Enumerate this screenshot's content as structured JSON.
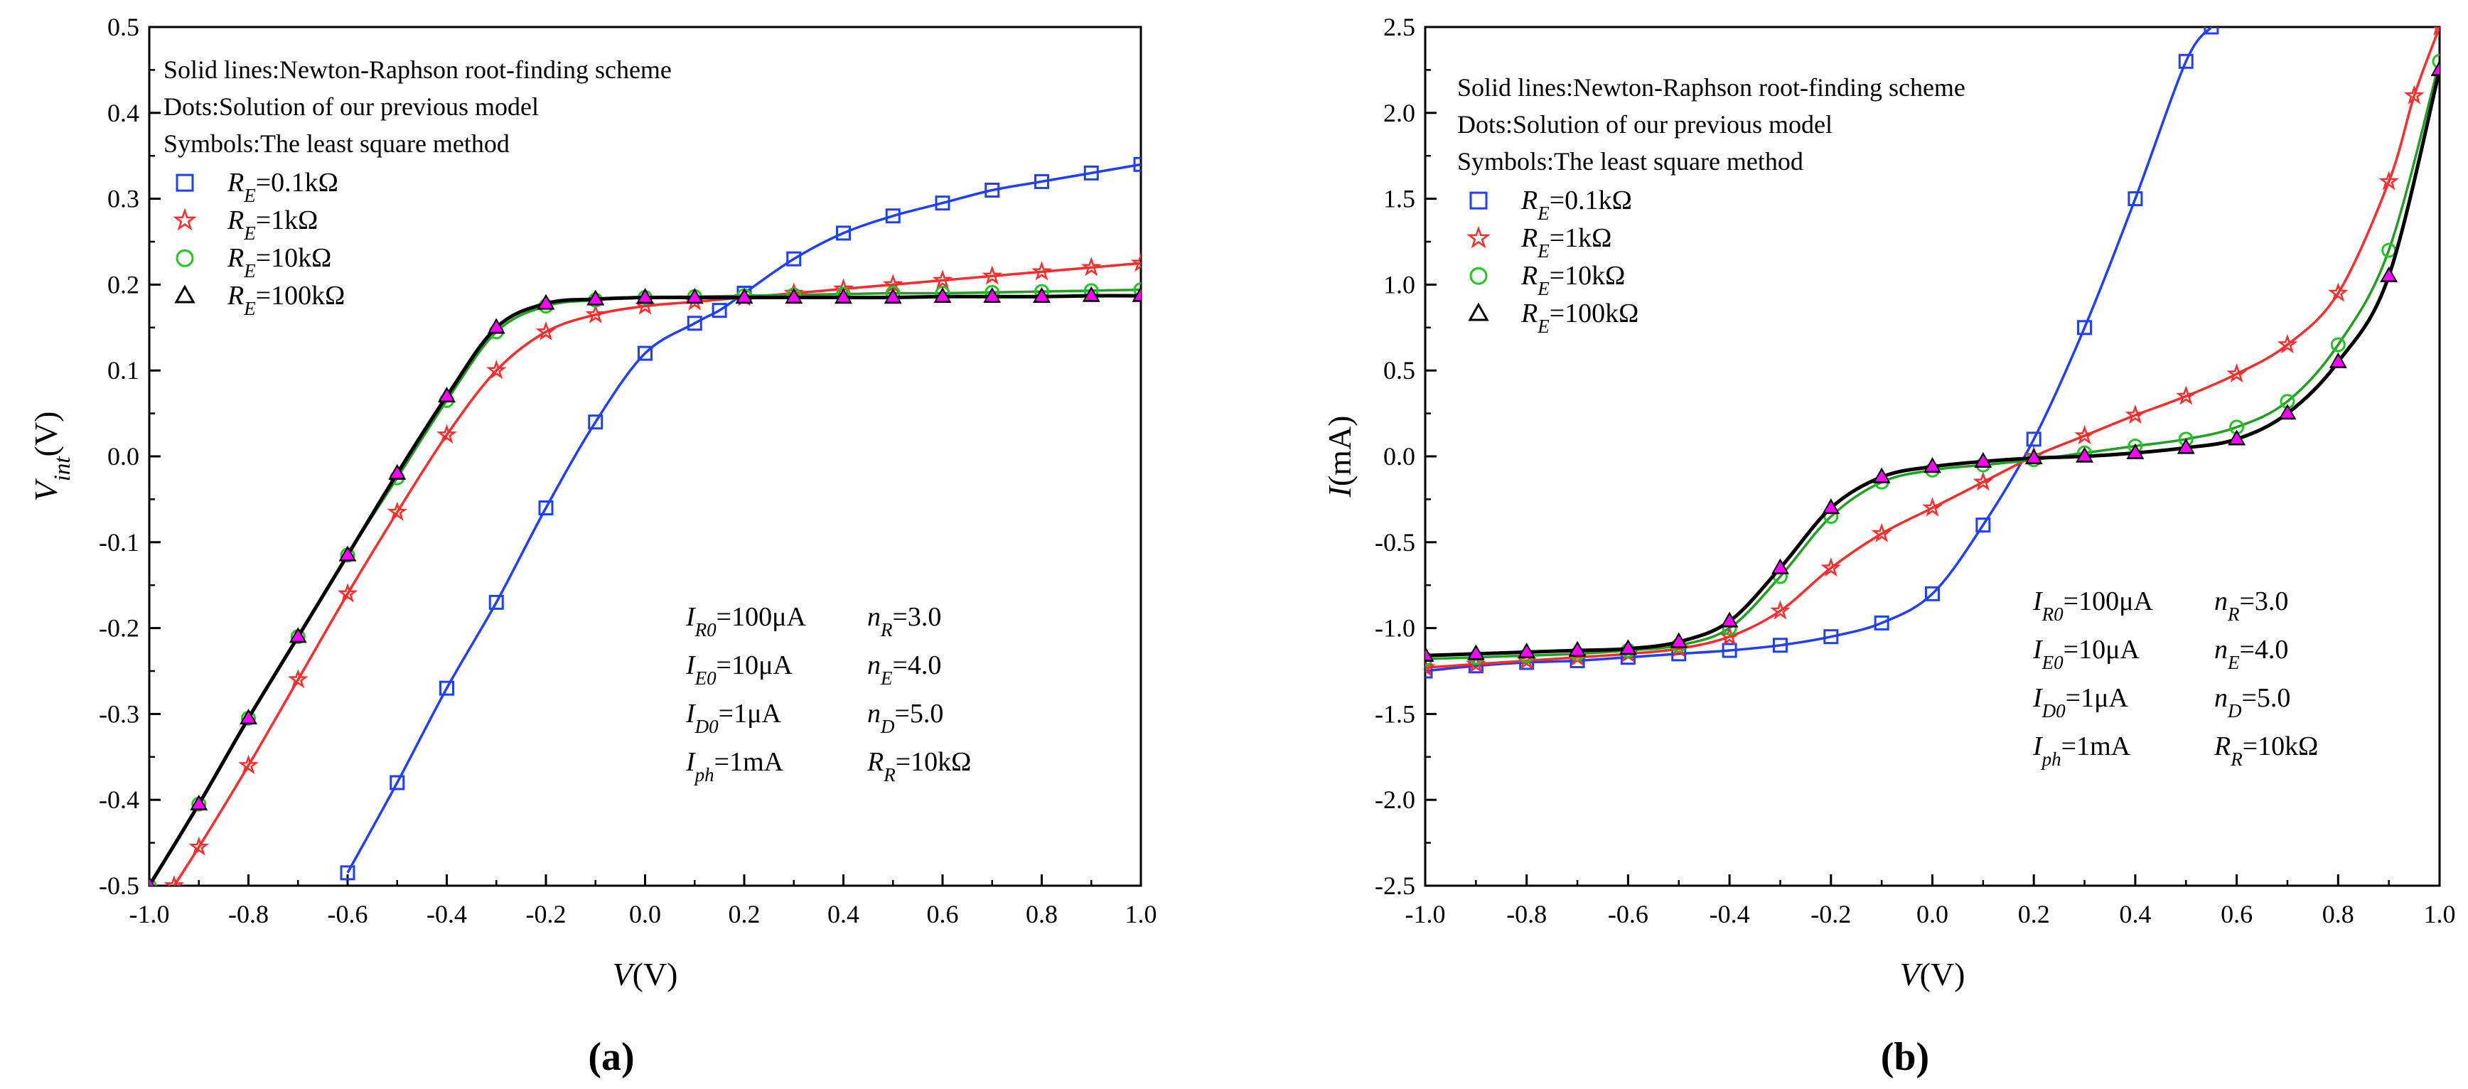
{
  "chart_data": [
    {
      "panel": "(a)",
      "type": "line",
      "xlabel": {
        "italic": "V",
        "rest": "(V)"
      },
      "ylabel": {
        "italic": "V",
        "sub": "int",
        "rest": "(V)"
      },
      "xlim": [
        -1.0,
        1.0
      ],
      "ylim": [
        -0.5,
        0.5
      ],
      "xticks": [
        "-1.0",
        "-0.8",
        "-0.6",
        "-0.4",
        "-0.2",
        "0.0",
        "0.2",
        "0.4",
        "0.6",
        "0.8",
        "1.0"
      ],
      "yticks": [
        "0.5",
        "0.4",
        "0.3",
        "0.2",
        "0.1",
        "0.0",
        "-0.1",
        "-0.2",
        "-0.3",
        "-0.4",
        "-0.5"
      ],
      "legend_lines": [
        "Solid lines:Newton-Raphson root-finding scheme",
        "Dots:Solution of our previous model",
        "Symbols:The least square method"
      ],
      "legend_entries": [
        {
          "symbol": "square",
          "color": "#1f3fff",
          "var": "R",
          "sub": "E",
          "text": "=0.1kΩ"
        },
        {
          "symbol": "star",
          "color": "#ff2a2a",
          "var": "R",
          "sub": "E",
          "text": "=1kΩ"
        },
        {
          "symbol": "circle",
          "color": "#1fc81f",
          "var": "R",
          "sub": "E",
          "text": "=10kΩ"
        },
        {
          "symbol": "triangle",
          "color": "#000000",
          "var": "R",
          "sub": "E",
          "text": "=100kΩ"
        }
      ],
      "params": [
        [
          {
            "var": "I",
            "sub": "R0",
            "text": "=100μA"
          },
          {
            "var": "n",
            "sub": "R",
            "text": "=3.0"
          }
        ],
        [
          {
            "var": "I",
            "sub": "E0",
            "text": "=10μA"
          },
          {
            "var": "n",
            "sub": "E",
            "text": "=4.0"
          }
        ],
        [
          {
            "var": "I",
            "sub": "D0",
            "text": "=1μA"
          },
          {
            "var": "n",
            "sub": "D",
            "text": "=5.0"
          }
        ],
        [
          {
            "var": "I",
            "sub": "ph",
            "text": "=1mA"
          },
          {
            "var": "R",
            "sub": "R",
            "text": "=10kΩ"
          }
        ]
      ],
      "series": [
        {
          "name": "R_E=0.1kΩ",
          "color": "#1f3fff",
          "symbol": "square",
          "x": [
            -0.6,
            -0.5,
            -0.4,
            -0.3,
            -0.2,
            -0.1,
            0.0,
            0.1,
            0.15,
            0.2,
            0.3,
            0.4,
            0.5,
            0.6,
            0.7,
            0.8,
            0.9,
            1.0
          ],
          "y": [
            -0.485,
            -0.38,
            -0.27,
            -0.17,
            -0.06,
            0.04,
            0.12,
            0.155,
            0.17,
            0.19,
            0.23,
            0.26,
            0.28,
            0.295,
            0.31,
            0.32,
            0.33,
            0.34
          ]
        },
        {
          "name": "R_E=1kΩ",
          "color": "#ff2a2a",
          "symbol": "star",
          "x": [
            -0.95,
            -0.9,
            -0.8,
            -0.7,
            -0.6,
            -0.5,
            -0.4,
            -0.3,
            -0.2,
            -0.1,
            0.0,
            0.1,
            0.2,
            0.3,
            0.4,
            0.5,
            0.6,
            0.7,
            0.8,
            0.9,
            1.0
          ],
          "y": [
            -0.5,
            -0.455,
            -0.36,
            -0.26,
            -0.16,
            -0.065,
            0.025,
            0.1,
            0.145,
            0.165,
            0.175,
            0.18,
            0.185,
            0.19,
            0.195,
            0.2,
            0.205,
            0.21,
            0.215,
            0.22,
            0.225
          ]
        },
        {
          "name": "R_E=10kΩ",
          "color": "#1fc81f",
          "symbol": "circle",
          "x": [
            -1.0,
            -0.9,
            -0.8,
            -0.7,
            -0.6,
            -0.5,
            -0.4,
            -0.3,
            -0.2,
            -0.1,
            0.0,
            0.1,
            0.2,
            0.3,
            0.4,
            0.5,
            0.6,
            0.7,
            0.8,
            0.9,
            1.0
          ],
          "y": [
            -0.5,
            -0.405,
            -0.305,
            -0.21,
            -0.115,
            -0.025,
            0.065,
            0.145,
            0.175,
            0.182,
            0.185,
            0.186,
            0.187,
            0.188,
            0.189,
            0.19,
            0.19,
            0.191,
            0.192,
            0.193,
            0.194
          ]
        },
        {
          "name": "R_E=100kΩ",
          "color": "#000000",
          "symbol": "triangle",
          "x": [
            -1.0,
            -0.9,
            -0.8,
            -0.7,
            -0.6,
            -0.5,
            -0.4,
            -0.3,
            -0.2,
            -0.1,
            0.0,
            0.1,
            0.2,
            0.3,
            0.4,
            0.5,
            0.6,
            0.7,
            0.8,
            0.9,
            1.0
          ],
          "y": [
            -0.5,
            -0.405,
            -0.305,
            -0.21,
            -0.115,
            -0.02,
            0.07,
            0.15,
            0.178,
            0.183,
            0.185,
            0.185,
            0.185,
            0.185,
            0.185,
            0.185,
            0.186,
            0.186,
            0.186,
            0.187,
            0.187
          ]
        }
      ]
    },
    {
      "panel": "(b)",
      "type": "line",
      "xlabel": {
        "italic": "V",
        "rest": "(V)"
      },
      "ylabel": {
        "italic": "I",
        "sub": "",
        "rest": "(mA)"
      },
      "xlim": [
        -1.0,
        1.0
      ],
      "ylim": [
        -2.5,
        2.5
      ],
      "xticks": [
        "-1.0",
        "-0.8",
        "-0.6",
        "-0.4",
        "-0.2",
        "0.0",
        "0.2",
        "0.4",
        "0.6",
        "0.8",
        "1.0"
      ],
      "yticks": [
        "2.5",
        "2.0",
        "1.5",
        "1.0",
        "0.5",
        "0.0",
        "-0.5",
        "-1.0",
        "-1.5",
        "-2.0",
        "-2.5"
      ],
      "legend_lines": [
        "Solid lines:Newton-Raphson root-finding scheme",
        "Dots:Solution of our previous model",
        "Symbols:The least square method"
      ],
      "legend_entries": [
        {
          "symbol": "square",
          "color": "#1f3fff",
          "var": "R",
          "sub": "E",
          "text": "=0.1kΩ"
        },
        {
          "symbol": "star",
          "color": "#ff2a2a",
          "var": "R",
          "sub": "E",
          "text": "=1kΩ"
        },
        {
          "symbol": "circle",
          "color": "#1fc81f",
          "var": "R",
          "sub": "E",
          "text": "=10kΩ"
        },
        {
          "symbol": "triangle",
          "color": "#000000",
          "var": "R",
          "sub": "E",
          "text": "=100kΩ"
        }
      ],
      "params": [
        [
          {
            "var": "I",
            "sub": "R0",
            "text": "=100μA"
          },
          {
            "var": "n",
            "sub": "R",
            "text": "=3.0"
          }
        ],
        [
          {
            "var": "I",
            "sub": "E0",
            "text": "=10μA"
          },
          {
            "var": "n",
            "sub": "E",
            "text": "=4.0"
          }
        ],
        [
          {
            "var": "I",
            "sub": "D0",
            "text": "=1μA"
          },
          {
            "var": "n",
            "sub": "D",
            "text": "=5.0"
          }
        ],
        [
          {
            "var": "I",
            "sub": "ph",
            "text": "=1mA"
          },
          {
            "var": "R",
            "sub": "R",
            "text": "=10kΩ"
          }
        ]
      ],
      "series": [
        {
          "name": "R_E=0.1kΩ",
          "color": "#1f3fff",
          "symbol": "square",
          "x": [
            -1.0,
            -0.9,
            -0.8,
            -0.7,
            -0.6,
            -0.5,
            -0.4,
            -0.3,
            -0.2,
            -0.1,
            0.0,
            0.1,
            0.2,
            0.3,
            0.4,
            0.5,
            0.55
          ],
          "y": [
            -1.25,
            -1.22,
            -1.2,
            -1.19,
            -1.17,
            -1.15,
            -1.13,
            -1.1,
            -1.05,
            -0.97,
            -0.8,
            -0.4,
            0.1,
            0.75,
            1.5,
            2.3,
            2.5
          ]
        },
        {
          "name": "R_E=1kΩ",
          "color": "#ff2a2a",
          "symbol": "star",
          "x": [
            -1.0,
            -0.9,
            -0.8,
            -0.7,
            -0.6,
            -0.5,
            -0.4,
            -0.3,
            -0.2,
            -0.1,
            0.0,
            0.1,
            0.2,
            0.3,
            0.4,
            0.5,
            0.6,
            0.7,
            0.8,
            0.9,
            0.95,
            1.0
          ],
          "y": [
            -1.23,
            -1.21,
            -1.19,
            -1.17,
            -1.15,
            -1.12,
            -1.05,
            -0.9,
            -0.65,
            -0.45,
            -0.3,
            -0.15,
            0.0,
            0.12,
            0.24,
            0.35,
            0.48,
            0.65,
            0.95,
            1.6,
            2.1,
            2.5
          ]
        },
        {
          "name": "R_E=10kΩ",
          "color": "#1fc81f",
          "symbol": "circle",
          "x": [
            -1.0,
            -0.9,
            -0.8,
            -0.7,
            -0.6,
            -0.5,
            -0.4,
            -0.3,
            -0.2,
            -0.1,
            0.0,
            0.1,
            0.2,
            0.3,
            0.4,
            0.5,
            0.6,
            0.7,
            0.8,
            0.9,
            1.0
          ],
          "y": [
            -1.18,
            -1.17,
            -1.16,
            -1.15,
            -1.13,
            -1.1,
            -1.0,
            -0.7,
            -0.35,
            -0.15,
            -0.08,
            -0.05,
            -0.02,
            0.02,
            0.06,
            0.1,
            0.17,
            0.32,
            0.65,
            1.2,
            2.3
          ]
        },
        {
          "name": "R_E=100kΩ",
          "color": "#000000",
          "symbol": "triangle",
          "x": [
            -1.0,
            -0.9,
            -0.8,
            -0.7,
            -0.6,
            -0.5,
            -0.4,
            -0.3,
            -0.2,
            -0.1,
            0.0,
            0.1,
            0.2,
            0.3,
            0.4,
            0.5,
            0.6,
            0.7,
            0.8,
            0.9,
            1.0
          ],
          "y": [
            -1.16,
            -1.15,
            -1.14,
            -1.13,
            -1.12,
            -1.08,
            -0.96,
            -0.65,
            -0.3,
            -0.12,
            -0.06,
            -0.03,
            -0.01,
            0.0,
            0.02,
            0.05,
            0.1,
            0.25,
            0.55,
            1.05,
            2.25
          ]
        }
      ]
    }
  ],
  "captions": [
    "(a)",
    "(b)"
  ]
}
